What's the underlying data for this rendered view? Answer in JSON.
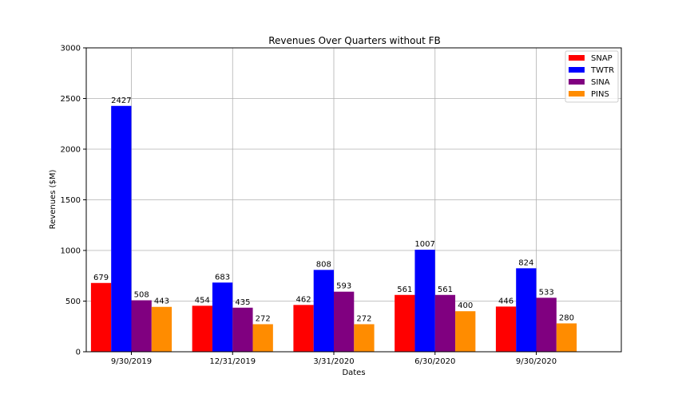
{
  "chart_data": {
    "type": "bar",
    "title": "Revenues Over Quarters without FB",
    "xlabel": "Dates",
    "ylabel": "Revenues ($M)",
    "categories": [
      "9/30/2019",
      "12/31/2019",
      "3/31/2020",
      "6/30/2020",
      "9/30/2020"
    ],
    "ylim": [
      0,
      3000
    ],
    "yticks": [
      0,
      500,
      1000,
      1500,
      2000,
      2500,
      3000
    ],
    "grid": true,
    "legend_position": "top-right",
    "series": [
      {
        "name": "SNAP",
        "color": "#ff0000",
        "values": [
          679,
          454,
          462,
          561,
          446
        ]
      },
      {
        "name": "TWTR",
        "color": "#0000ff",
        "values": [
          2427,
          683,
          808,
          1007,
          824
        ]
      },
      {
        "name": "SINA",
        "color": "#800080",
        "values": [
          508,
          435,
          593,
          561,
          533
        ]
      },
      {
        "name": "PINS",
        "color": "#ff8c00",
        "values": [
          443,
          272,
          272,
          400,
          280
        ]
      }
    ]
  }
}
